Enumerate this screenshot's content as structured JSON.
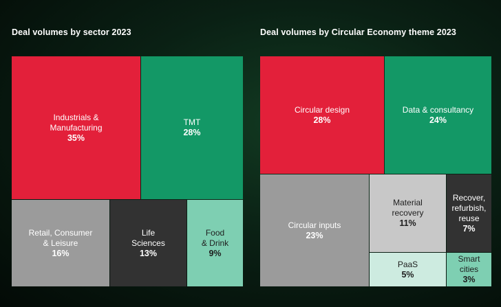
{
  "colors": {
    "red": "#e3203a",
    "green": "#139866",
    "gray": "#9b9b9b",
    "dark": "#323232",
    "mint": "#7ecfb2",
    "light_gray": "#c8c8c8",
    "pale_mint": "#cdebe0"
  },
  "chart_data": [
    {
      "type": "treemap",
      "title": "Deal volumes by sector 2023",
      "items": [
        {
          "label": "Industrials &\nManufacturing",
          "value": 35,
          "display": "35%",
          "color": "red"
        },
        {
          "label": "TMT",
          "value": 28,
          "display": "28%",
          "color": "green"
        },
        {
          "label": "Retail, Consumer\n& Leisure",
          "value": 16,
          "display": "16%",
          "color": "gray"
        },
        {
          "label": "Life\nSciences",
          "value": 13,
          "display": "13%",
          "color": "dark"
        },
        {
          "label": "Food\n& Drink",
          "value": 9,
          "display": "9%",
          "color": "mint"
        }
      ]
    },
    {
      "type": "treemap",
      "title": "Deal volumes by Circular Economy theme 2023",
      "items": [
        {
          "label": "Circular design",
          "value": 28,
          "display": "28%",
          "color": "red"
        },
        {
          "label": "Data & consultancy",
          "value": 24,
          "display": "24%",
          "color": "green"
        },
        {
          "label": "Circular inputs",
          "value": 23,
          "display": "23%",
          "color": "gray"
        },
        {
          "label": "Material\nrecovery",
          "value": 11,
          "display": "11%",
          "color": "light_gray"
        },
        {
          "label": "Recover,\nrefurbish,\nreuse",
          "value": 7,
          "display": "7%",
          "color": "dark"
        },
        {
          "label": "PaaS",
          "value": 5,
          "display": "5%",
          "color": "pale_mint"
        },
        {
          "label": "Smart\ncities",
          "value": 3,
          "display": "3%",
          "color": "mint"
        }
      ]
    }
  ]
}
